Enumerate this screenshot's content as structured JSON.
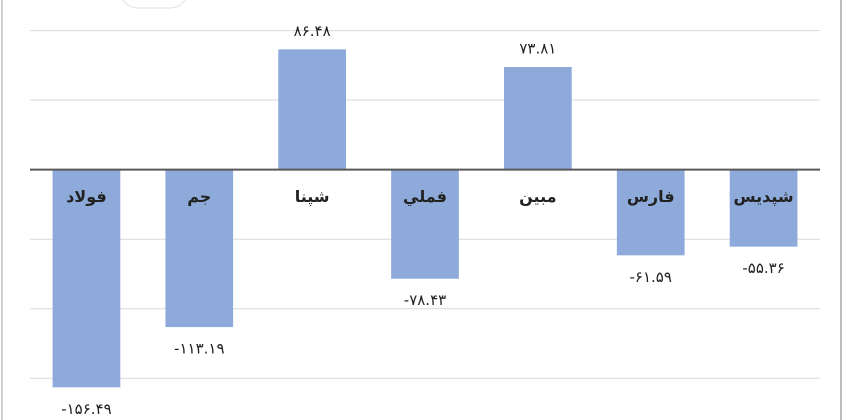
{
  "chart_data": {
    "type": "bar",
    "categories": [
      "فولاد",
      "جم",
      "شپنا",
      "فملي",
      "مبين",
      "فارس",
      "شپديس"
    ],
    "values": [
      -156.49,
      -113.19,
      86.48,
      -78.43,
      73.81,
      -61.59,
      -55.36
    ],
    "value_labels": [
      "-۱۵۶.۴۹",
      "-۱۱۳.۱۹",
      "۸۶.۴۸",
      "-۷۸.۴۳",
      "۷۳.۸۱",
      "-۶۱.۵۹",
      "-۵۵.۳۶"
    ],
    "color": "#8eaadb",
    "ylim": [
      -180,
      122
    ],
    "yticks": [
      -150,
      -100,
      -50,
      0,
      50,
      100
    ],
    "grid": true
  }
}
